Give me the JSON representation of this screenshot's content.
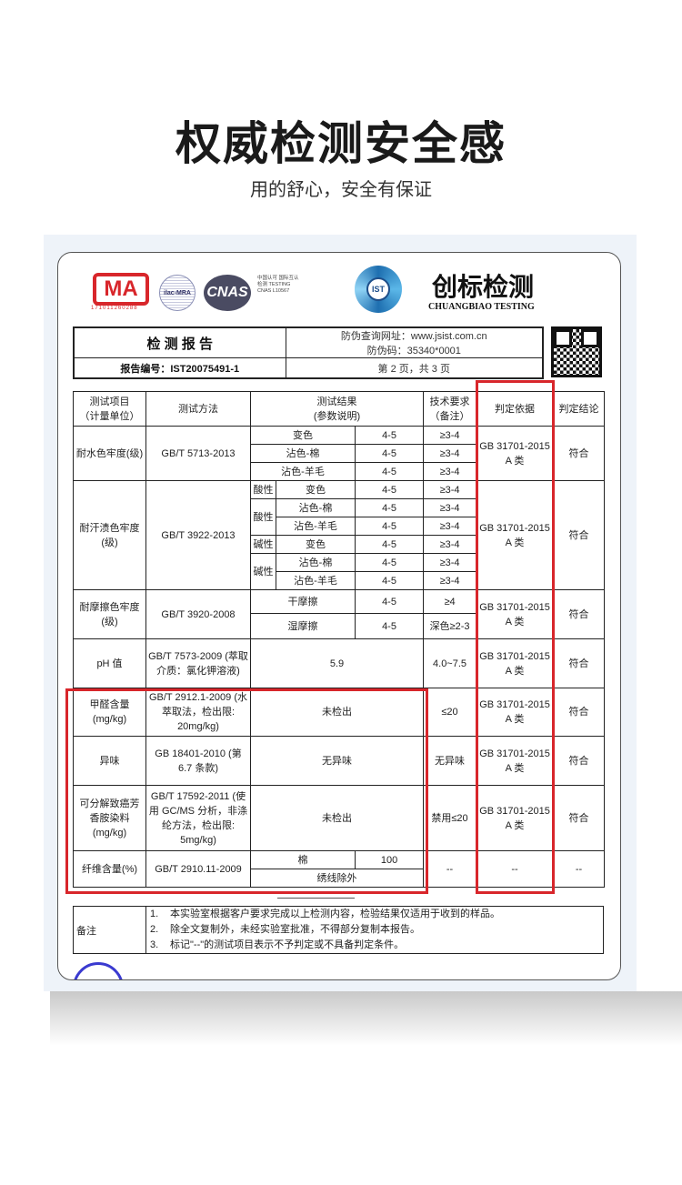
{
  "heading": {
    "title": "权威检测安全感",
    "subtitle": "用的舒心，安全有保证"
  },
  "logos": {
    "cma": "MA",
    "cma_number": "171011260288",
    "ilac": "ilac-MRA",
    "cnas": "CNAS",
    "cnas_text": "中国认可 国际互认 检测 TESTING CNAS L10567",
    "ist": "IST",
    "brand_cn": "创标检测",
    "brand_en": "CHUANGBIAO TESTING"
  },
  "report": {
    "title": "检 测 报 告",
    "url_line": "防伪查询网址：www.jsist.com.cn",
    "code_line": "防伪码：35340*0001",
    "number": "报告编号：IST20075491-1",
    "page": "第 2 页，共 3 页"
  },
  "columns": [
    "测试项目\n（计量单位）",
    "测试方法",
    "测试结果\n(参数说明)",
    "技术要求\n（备注）",
    "判定依据",
    "判定结论"
  ],
  "basis": "GB 31701-2015 A 类",
  "conclusion": "符合",
  "rows": {
    "water": {
      "item": "耐水色牢度(级)",
      "method": "GB/T 5713-2013",
      "subs": [
        [
          "变色",
          "4-5",
          "≥3-4"
        ],
        [
          "沾色-棉",
          "4-5",
          "≥3-4"
        ],
        [
          "沾色-羊毛",
          "4-5",
          "≥3-4"
        ]
      ]
    },
    "sweat": {
      "item": "耐汗渍色牢度(级)",
      "method": "GB/T 3922-2013",
      "groups": [
        "酸性",
        "碱性"
      ],
      "subs": [
        [
          "变色",
          "4-5",
          "≥3-4"
        ],
        [
          "沾色-棉",
          "4-5",
          "≥3-4"
        ],
        [
          "沾色-羊毛",
          "4-5",
          "≥3-4"
        ],
        [
          "变色",
          "4-5",
          "≥3-4"
        ],
        [
          "沾色-棉",
          "4-5",
          "≥3-4"
        ],
        [
          "沾色-羊毛",
          "4-5",
          "≥3-4"
        ]
      ]
    },
    "rub": {
      "item": "耐摩擦色牢度(级)",
      "method": "GB/T 3920-2008",
      "subs": [
        [
          "干摩擦",
          "4-5",
          "≥4"
        ],
        [
          "湿摩擦",
          "4-5",
          "深色≥2-3"
        ]
      ]
    },
    "ph": {
      "item": "pH 值",
      "method": "GB/T 7573-2009 (萃取介质：氯化钾溶液)",
      "result": "5.9",
      "req": "4.0~7.5"
    },
    "formaldehyde": {
      "item": "甲醛含量 (mg/kg)",
      "method": "GB/T 2912.1-2009 (水萃取法，检出限: 20mg/kg)",
      "result": "未检出",
      "req": "≤20"
    },
    "odor": {
      "item": "异味",
      "method": "GB 18401-2010 (第 6.7 条款)",
      "result": "无异味",
      "req": "无异味"
    },
    "amine": {
      "item": "可分解致癌芳香胺染料 (mg/kg)",
      "method": "GB/T 17592-2011 (使用 GC/MS 分析，非涤纶方法，检出限: 5mg/kg)",
      "result": "未检出",
      "req": "禁用≤20"
    },
    "fiber": {
      "item": "纤维含量(%)",
      "method": "GB/T 2910.11-2009",
      "sub": "棉",
      "value": "100",
      "note": "绣线除外",
      "req": "--",
      "basis": "--",
      "conclusion": "--"
    }
  },
  "notes": {
    "label": "备注",
    "items": [
      {
        "n": "1.",
        "t": "本实验室根据客户要求完成以上检测内容，检验结果仅适用于收到的样品。"
      },
      {
        "n": "2.",
        "t": "除全文复制外，未经实验室批准，不得部分复制本报告。"
      },
      {
        "n": "3.",
        "t": "标记\"--\"的测试项目表示不予判定或不具备判定条件。"
      }
    ]
  },
  "colors": {
    "highlight": "#d8262b",
    "panel": "#eef3f9"
  }
}
